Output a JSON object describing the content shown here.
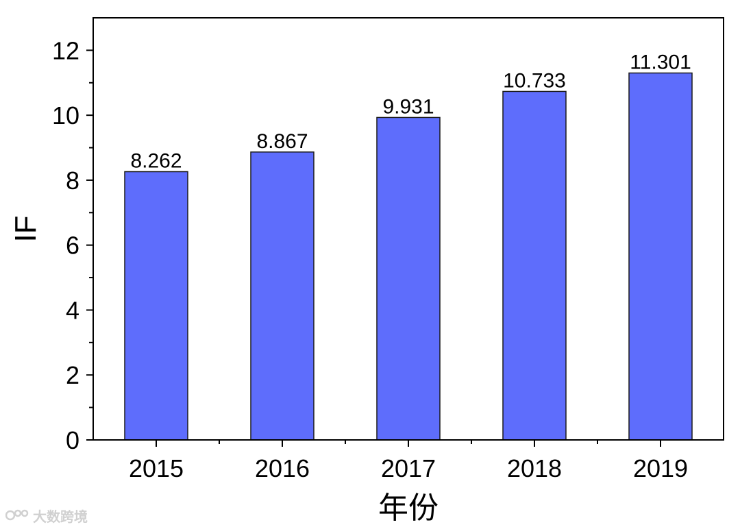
{
  "chart_data": {
    "type": "bar",
    "categories": [
      "2015",
      "2016",
      "2017",
      "2018",
      "2019"
    ],
    "values": [
      8.262,
      8.867,
      9.931,
      10.733,
      11.301
    ],
    "data_labels": [
      "8.262",
      "8.867",
      "9.931",
      "10.733",
      "11.301"
    ],
    "xlabel": "年份",
    "ylabel": "IF",
    "ylim": [
      0,
      13
    ],
    "yticks": [
      0,
      2,
      4,
      6,
      8,
      10,
      12
    ],
    "grid": false,
    "legend": "none",
    "bar_color": "#5e6dfc",
    "bar_edge_color": "#1a1a1a"
  },
  "watermark": {
    "text": "大数跨境"
  }
}
